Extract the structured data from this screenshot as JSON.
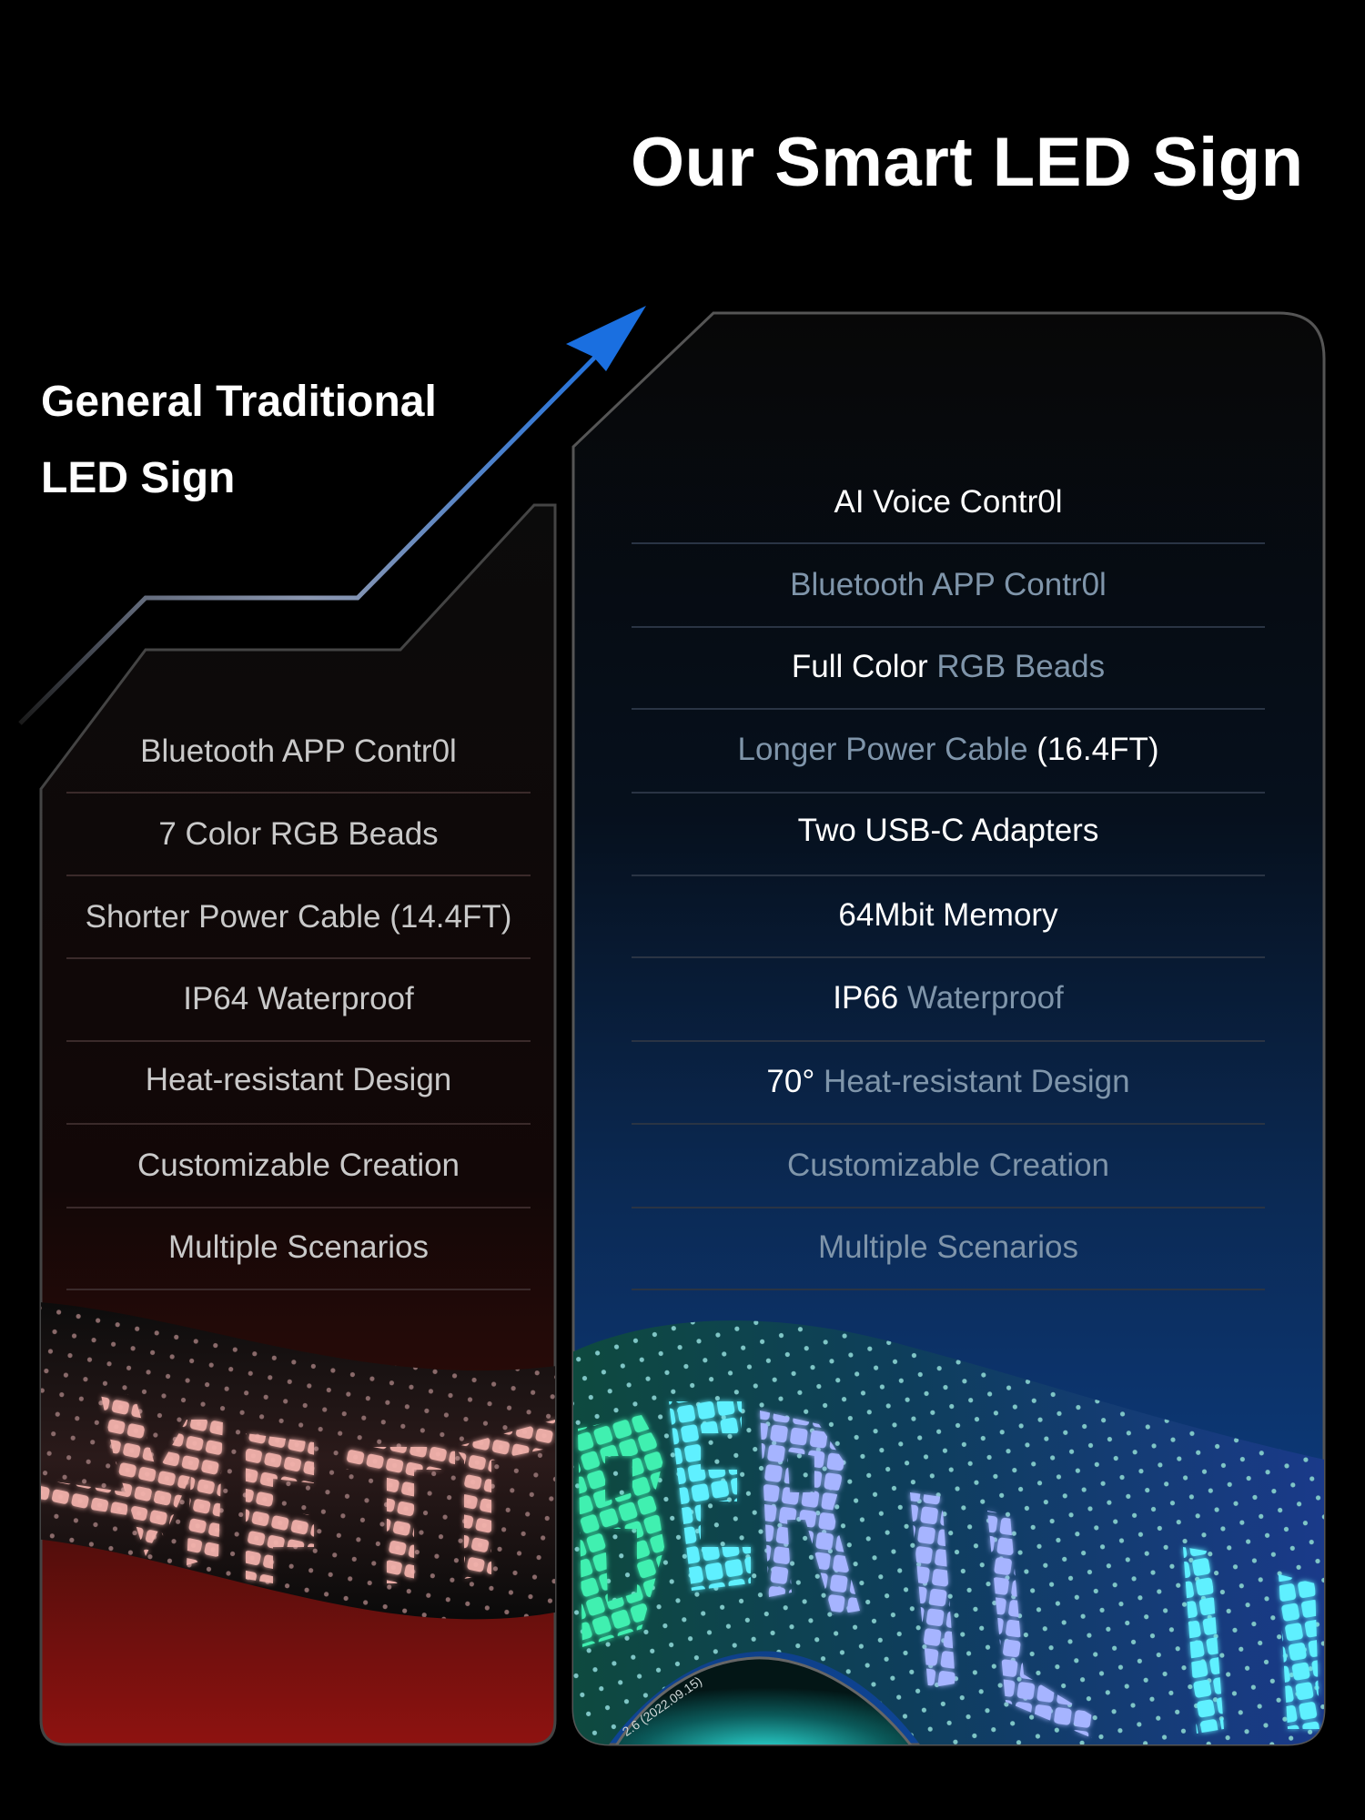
{
  "title": "Our Smart LED Sign",
  "left_panel": {
    "heading_line1": "General Traditional",
    "heading_line2": "LED Sign",
    "rows": [
      "Bluetooth APP Contr0l",
      "7 Color RGB Beads",
      "Shorter Power Cable (14.4FT)",
      "IP64 Waterproof",
      "Heat-resistant Design",
      "Customizable Creation",
      "Multiple Scenarios"
    ],
    "text_color": "#c9c9c9",
    "accent_color": "#8f1010"
  },
  "right_panel": {
    "rows": [
      {
        "segments": [
          {
            "text": "AI Voice Contr0l",
            "highlight": false
          }
        ]
      },
      {
        "segments": [
          {
            "text": "Bluetooth APP Contr0l",
            "highlight": true
          }
        ]
      },
      {
        "segments": [
          {
            "text": "Full Color ",
            "highlight": false
          },
          {
            "text": "RGB Beads",
            "highlight": true
          }
        ]
      },
      {
        "segments": [
          {
            "text": "Longer Power Cable ",
            "highlight": true
          },
          {
            "text": "(16.4FT)",
            "highlight": false
          }
        ]
      },
      {
        "segments": [
          {
            "text": "Two USB-C Adapters",
            "highlight": false
          }
        ]
      },
      {
        "segments": [
          {
            "text": "64Mbit Memory",
            "highlight": false
          }
        ]
      },
      {
        "segments": [
          {
            "text": "IP66 ",
            "highlight": false
          },
          {
            "text": "Waterproof",
            "highlight": true
          }
        ]
      },
      {
        "segments": [
          {
            "text": "70° ",
            "highlight": false
          },
          {
            "text": "Heat-resistant Design",
            "highlight": true
          }
        ]
      },
      {
        "segments": [
          {
            "text": "Customizable Creation",
            "highlight": true
          }
        ]
      },
      {
        "segments": [
          {
            "text": "Multiple Scenarios",
            "highlight": true
          }
        ]
      }
    ],
    "version_label": "2.6 (2022.09.15)",
    "highlight_color": "#7f95aa",
    "accent_color": "#0d3f86"
  },
  "arrow_color": "#1a6fe0"
}
